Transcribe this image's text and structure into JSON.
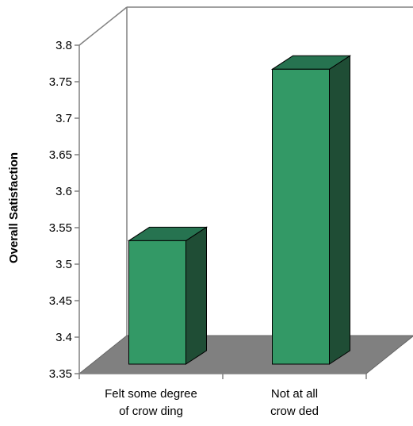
{
  "chart_data": {
    "type": "bar",
    "style": "3d",
    "categories": [
      [
        "Felt some degree",
        "of crow ding"
      ],
      [
        "Not at all",
        "crow ded"
      ]
    ],
    "values": [
      3.53,
      3.78
    ],
    "ylabel": "Overall Satisfaction",
    "ylim": [
      3.35,
      3.8
    ],
    "ytick_labels": [
      "3.35",
      "3.4",
      "3.45",
      "3.5",
      "3.55",
      "3.6",
      "3.65",
      "3.7",
      "3.75",
      "3.8"
    ],
    "grid": false,
    "legend": "none",
    "colors": {
      "bar_front": "#339966",
      "bar_top": "#267350",
      "bar_side": "#1f4d35",
      "floor": "#808080",
      "axis_line": "#808080",
      "edge": "#000000"
    }
  }
}
